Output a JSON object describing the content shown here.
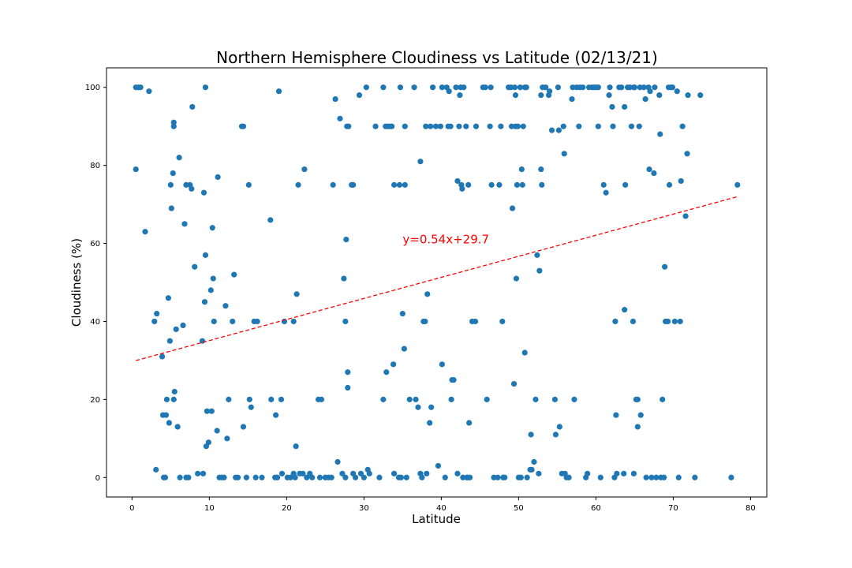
{
  "chart_data": {
    "type": "scatter",
    "title": "Northern Hemisphere Cloudiness vs Latitude (02/13/21)",
    "xlabel": "Latitude",
    "ylabel": "Cloudiness (%)",
    "xlim": [
      -3.3,
      82.1
    ],
    "ylim": [
      -5,
      105
    ],
    "xticks": [
      0,
      10,
      20,
      30,
      40,
      50,
      60,
      70,
      80
    ],
    "yticks": [
      0,
      20,
      40,
      60,
      80,
      100
    ],
    "grid": false,
    "marker_color": "#1f77b4",
    "regression": {
      "equation": "y=0.54x+29.7",
      "slope": 0.54,
      "intercept": 29.7,
      "x_range": [
        0.5,
        78.3
      ],
      "color": "#ff0000",
      "style": "dashed",
      "label_position": {
        "x": 35,
        "y": 60
      }
    },
    "points": [
      [
        0.5,
        100
      ],
      [
        0.8,
        100
      ],
      [
        1.1,
        100
      ],
      [
        2.2,
        99
      ],
      [
        0.5,
        79
      ],
      [
        1.7,
        63
      ],
      [
        2.9,
        40
      ],
      [
        3.2,
        42
      ],
      [
        3.9,
        31
      ],
      [
        3.1,
        2
      ],
      [
        4.0,
        16
      ],
      [
        4.1,
        0
      ],
      [
        4.3,
        0
      ],
      [
        4.4,
        16
      ],
      [
        4.5,
        20
      ],
      [
        4.7,
        46
      ],
      [
        4.8,
        14
      ],
      [
        4.9,
        35
      ],
      [
        5.0,
        75
      ],
      [
        5.1,
        69
      ],
      [
        5.3,
        78
      ],
      [
        5.4,
        91
      ],
      [
        5.4,
        90
      ],
      [
        5.4,
        20
      ],
      [
        5.5,
        22
      ],
      [
        5.7,
        38
      ],
      [
        5.9,
        13
      ],
      [
        6.1,
        82
      ],
      [
        6.2,
        0
      ],
      [
        6.6,
        39
      ],
      [
        6.8,
        65
      ],
      [
        7.0,
        75
      ],
      [
        7.0,
        0
      ],
      [
        7.3,
        0
      ],
      [
        7.5,
        75
      ],
      [
        7.7,
        74
      ],
      [
        7.8,
        95
      ],
      [
        8.1,
        54
      ],
      [
        8.5,
        1
      ],
      [
        9.1,
        35
      ],
      [
        9.2,
        1
      ],
      [
        9.3,
        73
      ],
      [
        9.4,
        45
      ],
      [
        9.5,
        100
      ],
      [
        9.5,
        57
      ],
      [
        9.6,
        8
      ],
      [
        9.7,
        17
      ],
      [
        9.9,
        9
      ],
      [
        10.2,
        48
      ],
      [
        10.3,
        17
      ],
      [
        10.4,
        64
      ],
      [
        10.5,
        51
      ],
      [
        10.6,
        40
      ],
      [
        11.0,
        12
      ],
      [
        11.1,
        77
      ],
      [
        11.3,
        0
      ],
      [
        11.6,
        0
      ],
      [
        11.9,
        0
      ],
      [
        12.1,
        44
      ],
      [
        12.3,
        10
      ],
      [
        12.5,
        20
      ],
      [
        13.0,
        40
      ],
      [
        13.2,
        52
      ],
      [
        13.4,
        0
      ],
      [
        13.7,
        0
      ],
      [
        14.2,
        90
      ],
      [
        14.4,
        90
      ],
      [
        14.4,
        13
      ],
      [
        14.8,
        0
      ],
      [
        15.1,
        75
      ],
      [
        15.2,
        20
      ],
      [
        15.4,
        18
      ],
      [
        15.8,
        40
      ],
      [
        16.2,
        40
      ],
      [
        16.0,
        0
      ],
      [
        16.8,
        0
      ],
      [
        17.9,
        66
      ],
      [
        18.0,
        20
      ],
      [
        18.5,
        0
      ],
      [
        18.6,
        16
      ],
      [
        18.8,
        0
      ],
      [
        19.0,
        99
      ],
      [
        19.3,
        20
      ],
      [
        19.4,
        1
      ],
      [
        19.7,
        40
      ],
      [
        20.1,
        0
      ],
      [
        20.5,
        0
      ],
      [
        20.9,
        1
      ],
      [
        20.9,
        40
      ],
      [
        21.1,
        0
      ],
      [
        21.2,
        8
      ],
      [
        21.3,
        47
      ],
      [
        21.5,
        75
      ],
      [
        21.7,
        1
      ],
      [
        22.1,
        1
      ],
      [
        22.3,
        79
      ],
      [
        22.6,
        0
      ],
      [
        23.0,
        1
      ],
      [
        23.3,
        0
      ],
      [
        24.1,
        20
      ],
      [
        24.3,
        0
      ],
      [
        24.5,
        20
      ],
      [
        25.0,
        0
      ],
      [
        25.4,
        0
      ],
      [
        25.8,
        0
      ],
      [
        26.0,
        75
      ],
      [
        26.3,
        97
      ],
      [
        26.6,
        4
      ],
      [
        26.9,
        92
      ],
      [
        27.2,
        1
      ],
      [
        27.4,
        51
      ],
      [
        27.6,
        0
      ],
      [
        27.6,
        40
      ],
      [
        27.7,
        61
      ],
      [
        27.8,
        90
      ],
      [
        28.0,
        90
      ],
      [
        27.9,
        27
      ],
      [
        27.9,
        23
      ],
      [
        28.4,
        75
      ],
      [
        28.6,
        75
      ],
      [
        28.6,
        1
      ],
      [
        28.9,
        0
      ],
      [
        29.4,
        98
      ],
      [
        29.6,
        1
      ],
      [
        30.0,
        0
      ],
      [
        30.3,
        100
      ],
      [
        30.5,
        2
      ],
      [
        30.7,
        1
      ],
      [
        31.5,
        90
      ],
      [
        32.0,
        0
      ],
      [
        32.5,
        20
      ],
      [
        32.5,
        100
      ],
      [
        32.9,
        27
      ],
      [
        32.8,
        90
      ],
      [
        33.1,
        90
      ],
      [
        33.3,
        90
      ],
      [
        33.6,
        90
      ],
      [
        33.9,
        75
      ],
      [
        33.8,
        29
      ],
      [
        33.9,
        1
      ],
      [
        34.5,
        0
      ],
      [
        34.6,
        75
      ],
      [
        34.7,
        100
      ],
      [
        34.8,
        0
      ],
      [
        35.0,
        42
      ],
      [
        35.2,
        33
      ],
      [
        35.3,
        90
      ],
      [
        35.3,
        75
      ],
      [
        35.5,
        0
      ],
      [
        35.9,
        20
      ],
      [
        36.5,
        100
      ],
      [
        36.7,
        20
      ],
      [
        37.0,
        18
      ],
      [
        37.3,
        1
      ],
      [
        37.3,
        81
      ],
      [
        37.5,
        0
      ],
      [
        37.7,
        40
      ],
      [
        37.9,
        40
      ],
      [
        38.0,
        90
      ],
      [
        38.1,
        1
      ],
      [
        38.2,
        47
      ],
      [
        38.5,
        14
      ],
      [
        38.6,
        90
      ],
      [
        38.7,
        18
      ],
      [
        38.9,
        100
      ],
      [
        39.3,
        90
      ],
      [
        39.6,
        3
      ],
      [
        39.9,
        90
      ],
      [
        40.1,
        100
      ],
      [
        40.1,
        29
      ],
      [
        40.5,
        0
      ],
      [
        40.7,
        100
      ],
      [
        40.9,
        90
      ],
      [
        41.0,
        99
      ],
      [
        41.2,
        90
      ],
      [
        41.4,
        25
      ],
      [
        41.3,
        20
      ],
      [
        41.6,
        25
      ],
      [
        41.9,
        100
      ],
      [
        42.1,
        76
      ],
      [
        42.1,
        1
      ],
      [
        42.3,
        90
      ],
      [
        42.4,
        98
      ],
      [
        42.5,
        100
      ],
      [
        42.6,
        75
      ],
      [
        42.7,
        74
      ],
      [
        42.8,
        0
      ],
      [
        42.9,
        100
      ],
      [
        43.2,
        90
      ],
      [
        43.3,
        0
      ],
      [
        43.4,
        0
      ],
      [
        43.5,
        75
      ],
      [
        43.6,
        14
      ],
      [
        43.7,
        0
      ],
      [
        44.0,
        40
      ],
      [
        44.4,
        40
      ],
      [
        44.5,
        90
      ],
      [
        45.4,
        100
      ],
      [
        45.7,
        100
      ],
      [
        45.9,
        20
      ],
      [
        46.3,
        90
      ],
      [
        46.4,
        100
      ],
      [
        46.5,
        75
      ],
      [
        46.8,
        0
      ],
      [
        47.3,
        0
      ],
      [
        47.5,
        75
      ],
      [
        47.7,
        90
      ],
      [
        48.0,
        0
      ],
      [
        47.9,
        40
      ],
      [
        48.2,
        0
      ],
      [
        48.7,
        100
      ],
      [
        49.0,
        100
      ],
      [
        49.1,
        90
      ],
      [
        49.2,
        69
      ],
      [
        49.4,
        24
      ],
      [
        49.5,
        100
      ],
      [
        49.6,
        90
      ],
      [
        49.6,
        98
      ],
      [
        49.7,
        51
      ],
      [
        49.8,
        75
      ],
      [
        49.9,
        90
      ],
      [
        50.0,
        0
      ],
      [
        50.2,
        100
      ],
      [
        50.3,
        0
      ],
      [
        50.4,
        79
      ],
      [
        50.5,
        75
      ],
      [
        50.6,
        90
      ],
      [
        50.8,
        32
      ],
      [
        50.8,
        100
      ],
      [
        51.0,
        100
      ],
      [
        51.1,
        0
      ],
      [
        51.5,
        2
      ],
      [
        51.6,
        11
      ],
      [
        51.7,
        2
      ],
      [
        52.0,
        4
      ],
      [
        52.2,
        20
      ],
      [
        52.4,
        57
      ],
      [
        52.6,
        1
      ],
      [
        52.7,
        53
      ],
      [
        52.9,
        79
      ],
      [
        52.9,
        98
      ],
      [
        53.0,
        75
      ],
      [
        53.1,
        100
      ],
      [
        53.5,
        100
      ],
      [
        53.9,
        98
      ],
      [
        54.0,
        99
      ],
      [
        54.3,
        89
      ],
      [
        54.7,
        20
      ],
      [
        54.8,
        11
      ],
      [
        55.1,
        100
      ],
      [
        55.2,
        89
      ],
      [
        55.3,
        13
      ],
      [
        55.6,
        1
      ],
      [
        55.8,
        90
      ],
      [
        55.9,
        83
      ],
      [
        56.0,
        1
      ],
      [
        56.2,
        0
      ],
      [
        56.5,
        0
      ],
      [
        56.9,
        97
      ],
      [
        57.0,
        100
      ],
      [
        57.2,
        20
      ],
      [
        57.5,
        100
      ],
      [
        57.8,
        90
      ],
      [
        57.9,
        100
      ],
      [
        58.3,
        100
      ],
      [
        58.7,
        0
      ],
      [
        58.9,
        1
      ],
      [
        59.1,
        100
      ],
      [
        59.5,
        100
      ],
      [
        59.8,
        100
      ],
      [
        60.1,
        100
      ],
      [
        60.3,
        100
      ],
      [
        60.3,
        90
      ],
      [
        60.6,
        0
      ],
      [
        61.0,
        75
      ],
      [
        61.3,
        73
      ],
      [
        61.7,
        98
      ],
      [
        61.8,
        100
      ],
      [
        62.1,
        95
      ],
      [
        62.2,
        90
      ],
      [
        62.4,
        0
      ],
      [
        62.5,
        40
      ],
      [
        62.6,
        16
      ],
      [
        62.7,
        1
      ],
      [
        63.0,
        100
      ],
      [
        63.3,
        100
      ],
      [
        63.6,
        1
      ],
      [
        63.7,
        43
      ],
      [
        63.7,
        95
      ],
      [
        63.8,
        75
      ],
      [
        64.1,
        100
      ],
      [
        64.4,
        100
      ],
      [
        64.6,
        90
      ],
      [
        64.8,
        40
      ],
      [
        64.9,
        1
      ],
      [
        64.9,
        100
      ],
      [
        65.0,
        100
      ],
      [
        65.2,
        20
      ],
      [
        65.4,
        20
      ],
      [
        65.4,
        13
      ],
      [
        65.6,
        90
      ],
      [
        65.7,
        100
      ],
      [
        65.8,
        16
      ],
      [
        66.2,
        100
      ],
      [
        66.4,
        97
      ],
      [
        66.5,
        0
      ],
      [
        66.8,
        100
      ],
      [
        66.9,
        79
      ],
      [
        67.0,
        99
      ],
      [
        67.2,
        0
      ],
      [
        67.5,
        78
      ],
      [
        67.6,
        100
      ],
      [
        67.8,
        0
      ],
      [
        68.2,
        98
      ],
      [
        68.3,
        88
      ],
      [
        68.4,
        0
      ],
      [
        68.6,
        20
      ],
      [
        68.8,
        0
      ],
      [
        68.9,
        54
      ],
      [
        69.0,
        40
      ],
      [
        69.3,
        40
      ],
      [
        69.4,
        100
      ],
      [
        69.5,
        75
      ],
      [
        69.7,
        100
      ],
      [
        69.9,
        100
      ],
      [
        70.2,
        40
      ],
      [
        70.5,
        99
      ],
      [
        70.7,
        0
      ],
      [
        70.9,
        40
      ],
      [
        71.0,
        76
      ],
      [
        71.2,
        90
      ],
      [
        71.6,
        67
      ],
      [
        71.8,
        83
      ],
      [
        71.9,
        98
      ],
      [
        72.8,
        0
      ],
      [
        73.5,
        98
      ],
      [
        77.5,
        0
      ],
      [
        78.3,
        75
      ]
    ]
  }
}
